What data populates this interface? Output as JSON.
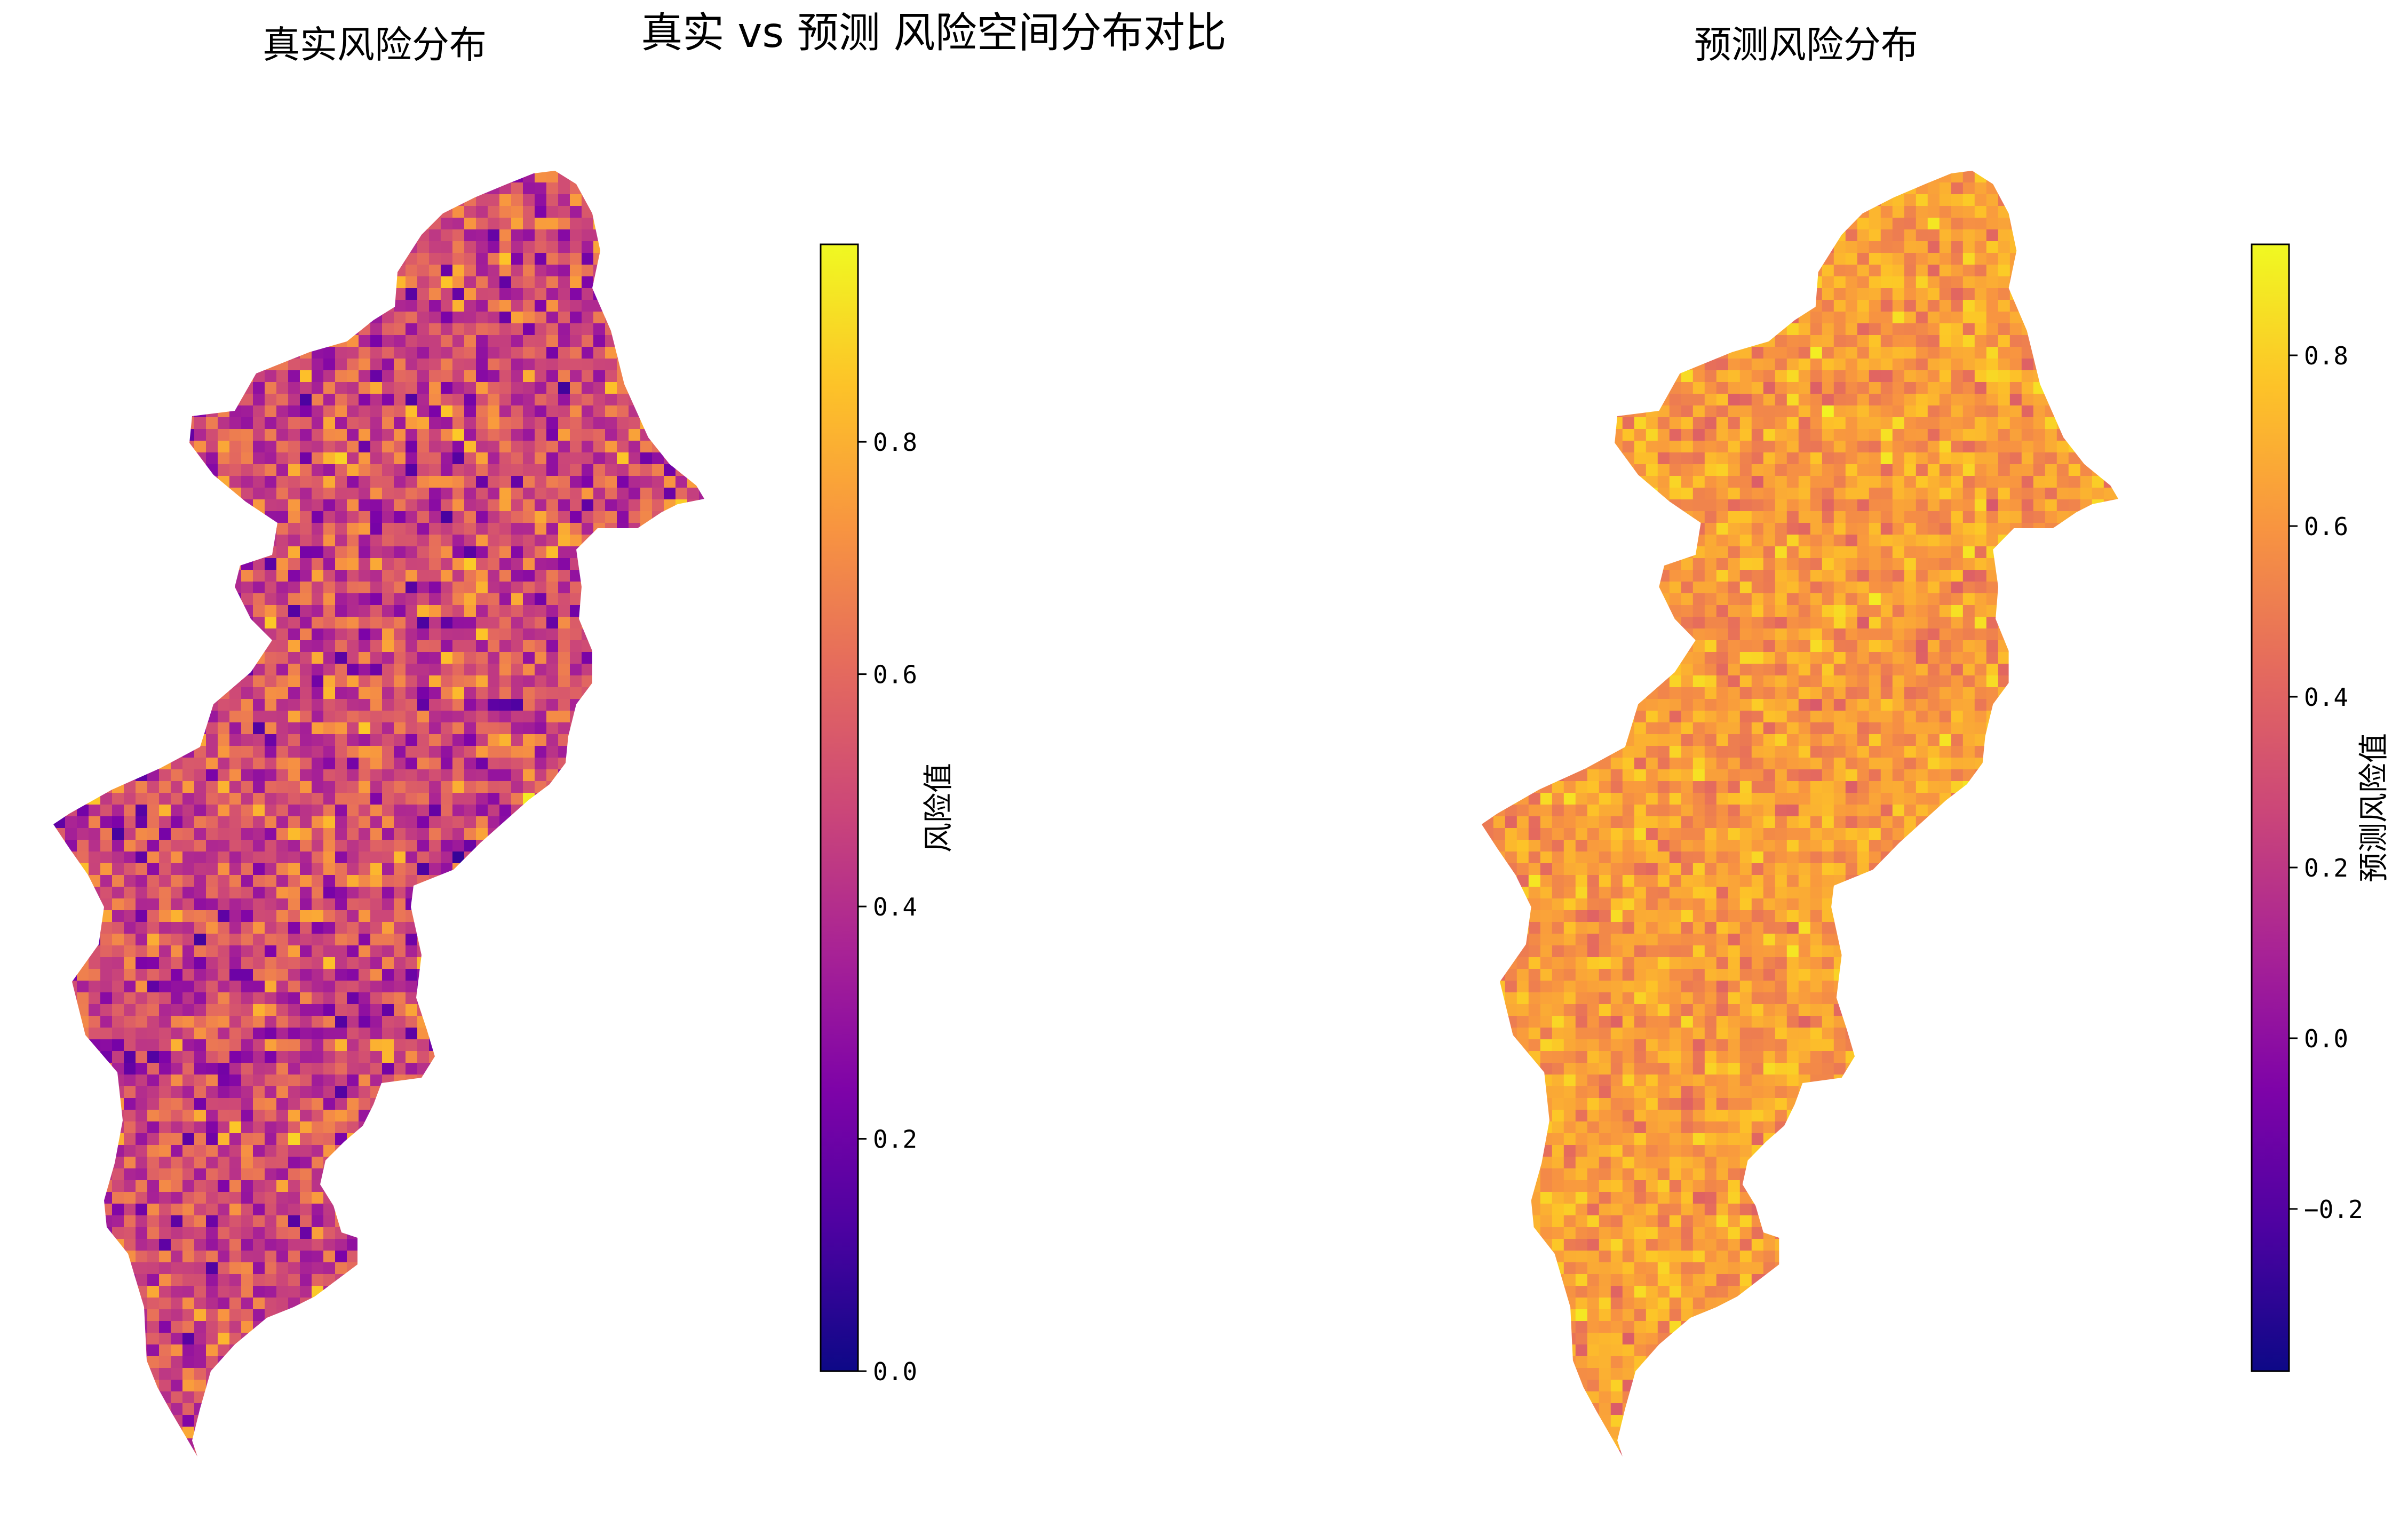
{
  "figure": {
    "suptitle": "真实 vs 预测 风险空间分布对比"
  },
  "chart_data": [
    {
      "type": "heatmap",
      "title": "真实风险分布",
      "colormap": "plasma",
      "colorbar": {
        "label": "风险值",
        "range": [
          0.0,
          0.97
        ],
        "ticks": [
          0.0,
          0.2,
          0.4,
          0.6,
          0.8
        ],
        "tick_labels": [
          "0.0",
          "0.2",
          "0.4",
          "0.6",
          "0.8"
        ]
      },
      "value_mean": 0.5,
      "value_spread": 0.15,
      "axes_visible": false
    },
    {
      "type": "heatmap",
      "title": "预测风险分布",
      "colormap": "plasma",
      "colorbar": {
        "label": "预测风险值",
        "range": [
          -0.39,
          0.93
        ],
        "ticks": [
          -0.2,
          0.0,
          0.2,
          0.4,
          0.6,
          0.8
        ],
        "tick_labels": [
          "−0.2",
          "0.0",
          "0.2",
          "0.4",
          "0.6",
          "0.8"
        ]
      },
      "value_mean": 0.62,
      "value_spread": 0.1,
      "axes_visible": false
    }
  ]
}
